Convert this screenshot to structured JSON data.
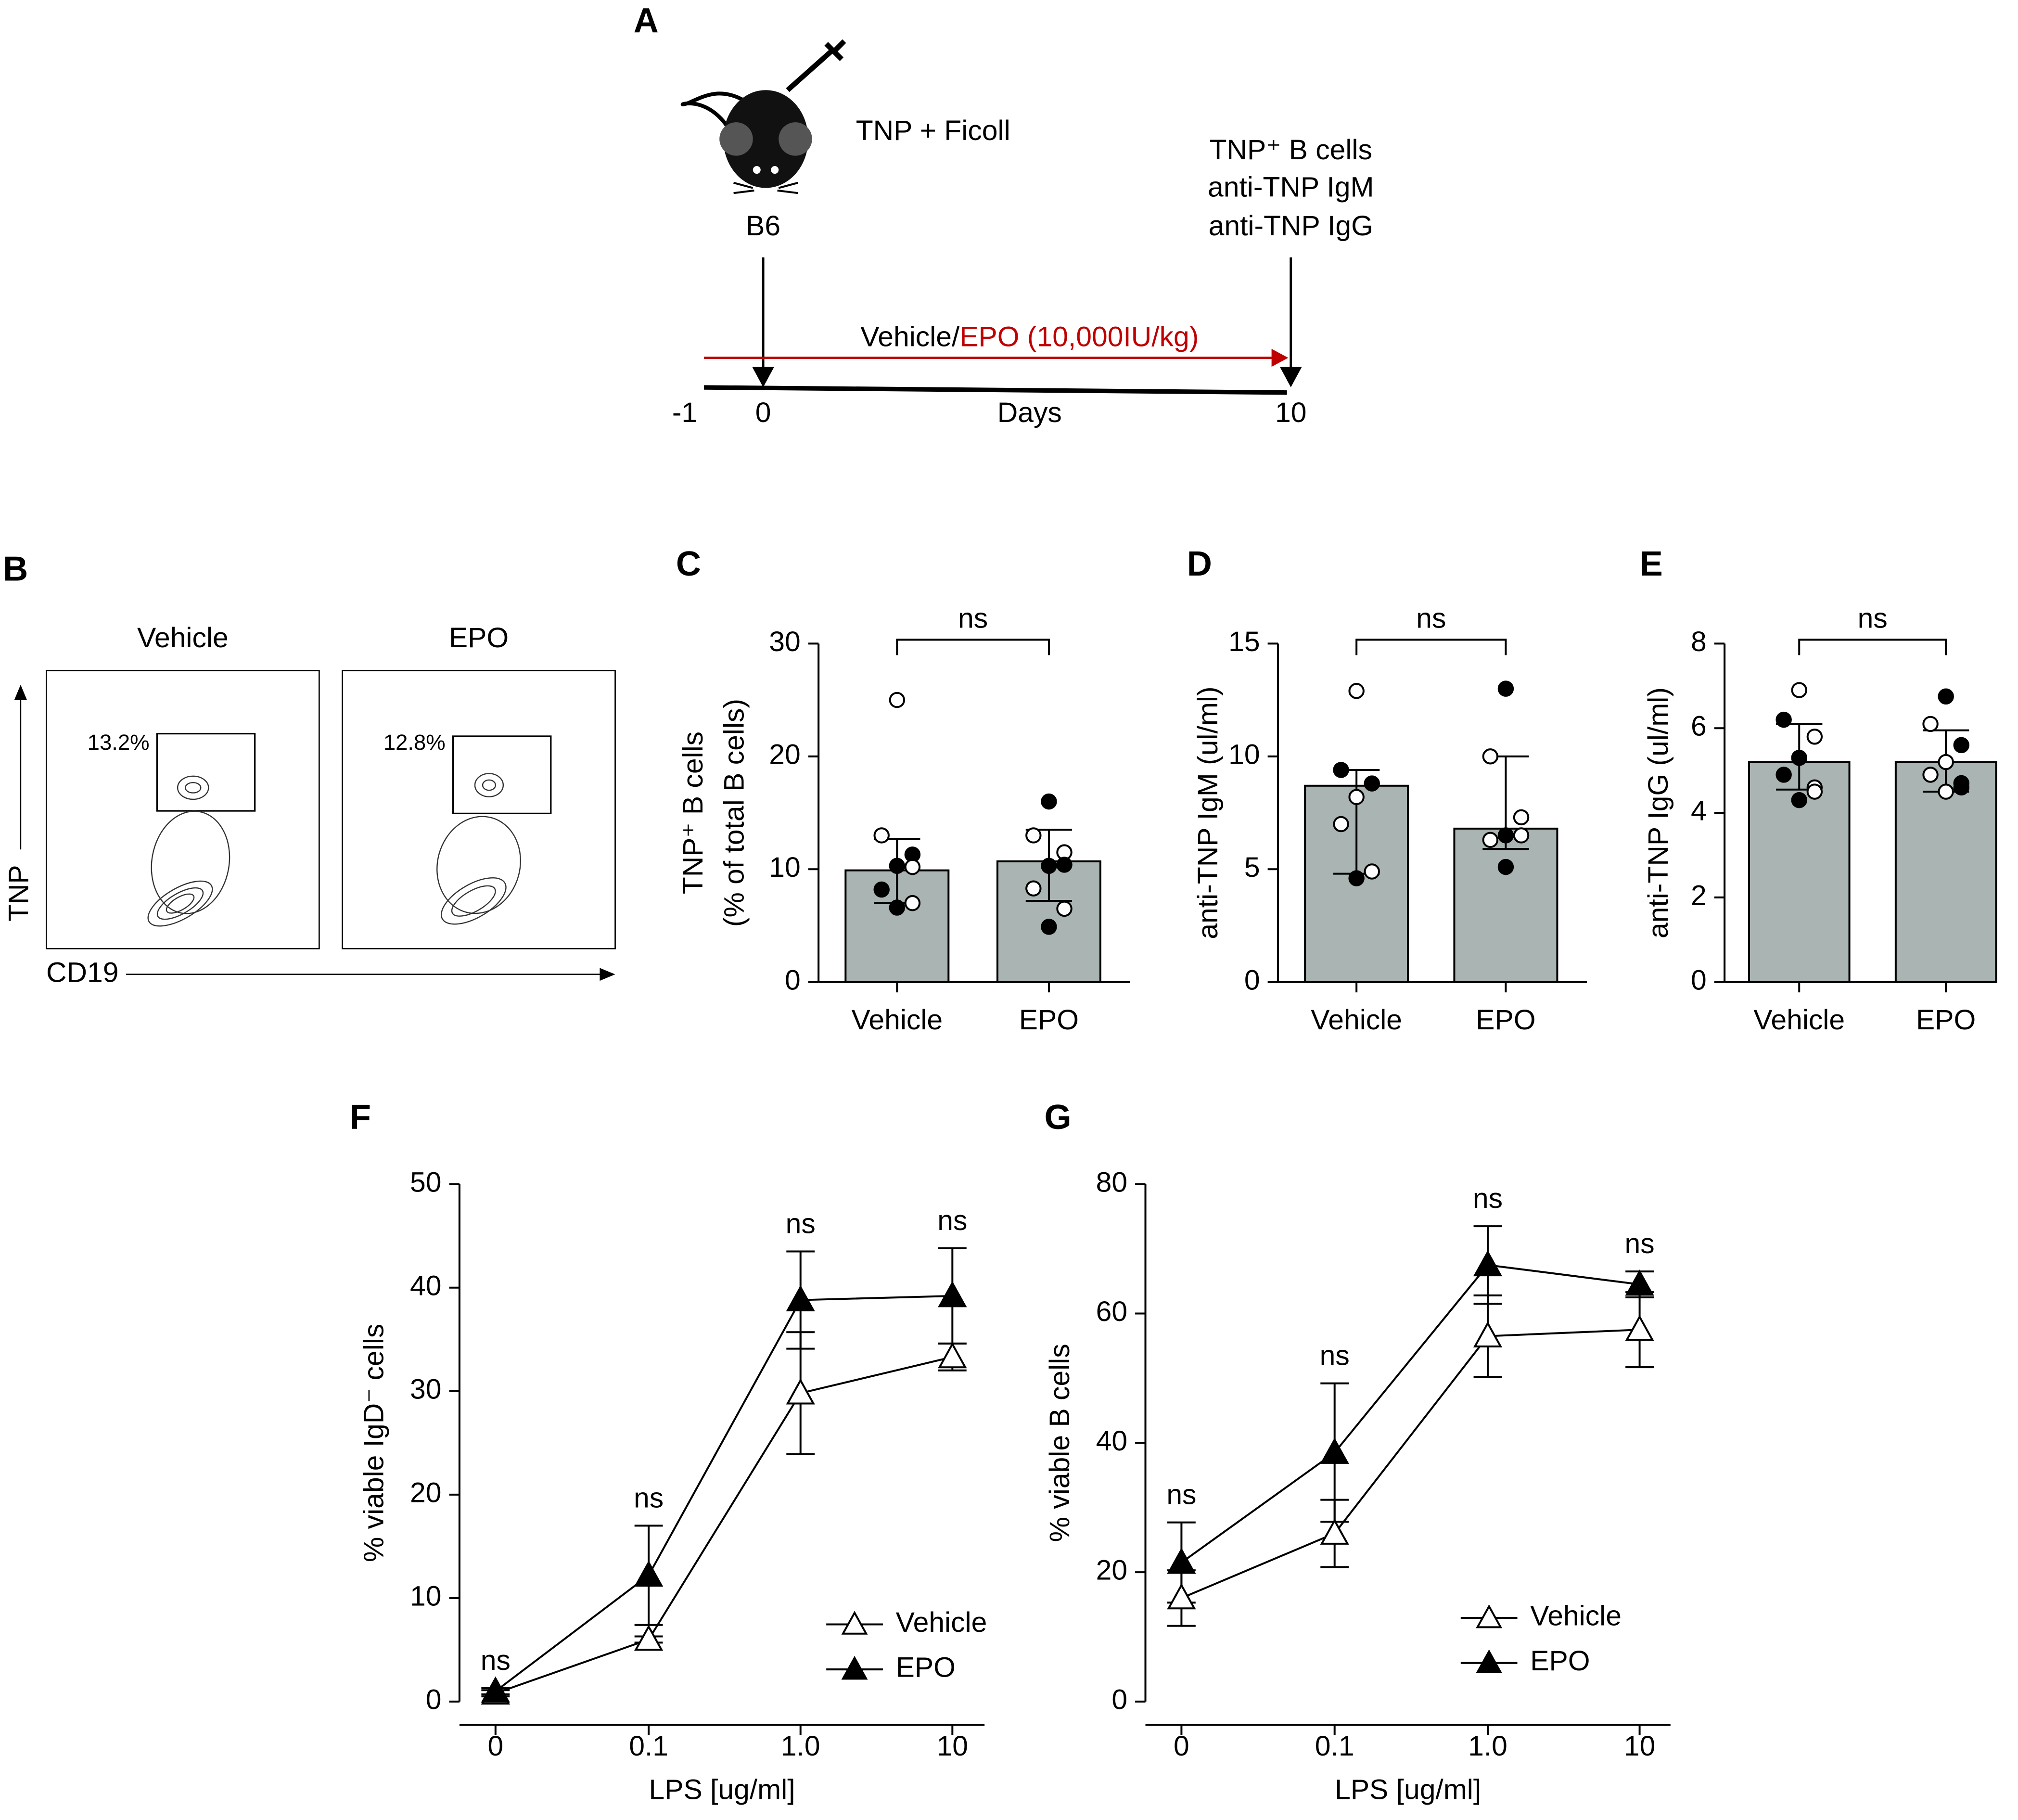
{
  "diagram": {
    "panel": "A",
    "treatment": "TNP + Ficoll",
    "strain": "B6",
    "readouts": [
      "TNP⁺ B cells",
      "anti-TNP IgM",
      "anti-TNP IgG"
    ],
    "arrow_text": [
      "Vehicle/",
      "EPO (10,000IU/kg)"
    ],
    "timeline": [
      "-1",
      "0",
      "Days",
      "10"
    ]
  },
  "flow": {
    "panel": "B",
    "plots": [
      {
        "title": "Vehicle",
        "gate": "13.2%"
      },
      {
        "title": "EPO",
        "gate": "12.8%"
      }
    ],
    "y_axis": "TNP",
    "x_axis": "CD19"
  },
  "chart_data": [
    {
      "type": "bar",
      "panel": "C",
      "ylabel": [
        "TNP⁺ B cells",
        "(% of total B cells)"
      ],
      "categories": [
        "Vehicle",
        "EPO"
      ],
      "values": [
        9.9,
        10.7
      ],
      "whisker_low": [
        7.0,
        7.2
      ],
      "whisker_high": [
        12.7,
        13.5
      ],
      "points": [
        [
          {
            "value": 25,
            "filled": false
          },
          {
            "value": 13,
            "filled": false
          },
          {
            "value": 11.3,
            "filled": true
          },
          {
            "value": 10.3,
            "filled": true
          },
          {
            "value": 8.2,
            "filled": true
          },
          {
            "value": 7.0,
            "filled": false
          },
          {
            "value": 6.6,
            "filled": true
          },
          {
            "value": 10.2,
            "filled": false
          }
        ],
        [
          {
            "value": 16,
            "filled": true
          },
          {
            "value": 13,
            "filled": false
          },
          {
            "value": 11.5,
            "filled": false
          },
          {
            "value": 10.3,
            "filled": true
          },
          {
            "value": 8.3,
            "filled": false
          },
          {
            "value": 6.5,
            "filled": false
          },
          {
            "value": 4.9,
            "filled": true
          },
          {
            "value": 10.4,
            "filled": true
          }
        ]
      ],
      "annotation": "ns",
      "bar_color": "#a9b4b3",
      "ylim": [
        0,
        30
      ],
      "yticks": [
        0,
        10,
        20,
        30
      ]
    },
    {
      "type": "bar",
      "panel": "D",
      "ylabel": [
        "anti-TNP IgM (ul/ml)"
      ],
      "categories": [
        "Vehicle",
        "EPO"
      ],
      "values": [
        8.7,
        6.8
      ],
      "whisker_low": [
        4.8,
        5.9
      ],
      "whisker_high": [
        9.4,
        10.0
      ],
      "points": [
        [
          {
            "value": 12.9,
            "filled": false
          },
          {
            "value": 9.4,
            "filled": true
          },
          {
            "value": 8.8,
            "filled": true
          },
          {
            "value": 8.2,
            "filled": false
          },
          {
            "value": 7.0,
            "filled": false
          },
          {
            "value": 4.9,
            "filled": false
          },
          {
            "value": 4.6,
            "filled": true
          }
        ],
        [
          {
            "value": 13,
            "filled": true
          },
          {
            "value": 10,
            "filled": false
          },
          {
            "value": 7.3,
            "filled": false
          },
          {
            "value": 6.5,
            "filled": true
          },
          {
            "value": 6.3,
            "filled": false
          },
          {
            "value": 6.5,
            "filled": false
          },
          {
            "value": 5.1,
            "filled": true
          }
        ]
      ],
      "annotation": "ns",
      "bar_color": "#a9b4b3",
      "ylim": [
        0,
        15
      ],
      "yticks": [
        0,
        5,
        10,
        15
      ]
    },
    {
      "type": "bar",
      "panel": "E",
      "ylabel": [
        "anti-TNP IgG (ul/ml)"
      ],
      "categories": [
        "Vehicle",
        "EPO"
      ],
      "values": [
        5.2,
        5.2
      ],
      "whisker_low": [
        4.55,
        4.5
      ],
      "whisker_high": [
        6.1,
        5.95
      ],
      "points": [
        [
          {
            "value": 6.9,
            "filled": false
          },
          {
            "value": 6.2,
            "filled": true
          },
          {
            "value": 5.8,
            "filled": false
          },
          {
            "value": 5.3,
            "filled": true
          },
          {
            "value": 4.9,
            "filled": true
          },
          {
            "value": 4.6,
            "filled": false
          },
          {
            "value": 4.3,
            "filled": true
          },
          {
            "value": 4.5,
            "filled": false
          }
        ],
        [
          {
            "value": 6.75,
            "filled": true
          },
          {
            "value": 6.1,
            "filled": false
          },
          {
            "value": 5.6,
            "filled": true
          },
          {
            "value": 5.2,
            "filled": false
          },
          {
            "value": 4.9,
            "filled": false
          },
          {
            "value": 4.6,
            "filled": true
          },
          {
            "value": 4.5,
            "filled": false
          },
          {
            "value": 4.7,
            "filled": true
          }
        ]
      ],
      "annotation": "ns",
      "bar_color": "#a9b4b3",
      "ylim": [
        0,
        8
      ],
      "yticks": [
        0,
        2,
        4,
        6,
        8
      ]
    },
    {
      "type": "line",
      "panel": "F",
      "ylabel": [
        "% viable IgD⁻ cells"
      ],
      "xlabel": "LPS [ug/ml]",
      "categories": [
        "0",
        "0.1",
        "1.0",
        "10"
      ],
      "series": [
        {
          "name": "Vehicle",
          "color": "#000000",
          "marker": "open-triangle",
          "values": [
            0.8,
            6.0,
            29.8,
            33.3
          ],
          "errors": [
            0.3,
            0.3,
            5.9,
            1.3
          ]
        },
        {
          "name": "EPO",
          "color": "#000000",
          "marker": "filled-triangle",
          "values": [
            1.0,
            12.2,
            38.8,
            39.2
          ],
          "errors": [
            0.3,
            4.8,
            4.7,
            4.6
          ]
        }
      ],
      "annotations": [
        "ns",
        "ns",
        "ns",
        "ns"
      ],
      "legend": "lower right",
      "ylim": [
        0,
        50
      ],
      "yticks": [
        0,
        10,
        20,
        30,
        40,
        50
      ]
    },
    {
      "type": "line",
      "panel": "G",
      "ylabel": [
        "% viable B cells"
      ],
      "xlabel": "LPS [ug/ml]",
      "categories": [
        "0",
        "0.1",
        "1.0",
        "10"
      ],
      "series": [
        {
          "name": "Vehicle",
          "color": "#000000",
          "marker": "open-triangle",
          "values": [
            16,
            26,
            56.5,
            57.5
          ],
          "errors": [
            4.3,
            5.2,
            6.3,
            5.8
          ]
        },
        {
          "name": "EPO",
          "color": "#000000",
          "marker": "filled-triangle",
          "values": [
            21.5,
            38.5,
            67.5,
            64.5
          ],
          "errors": [
            6.2,
            10.7,
            6.0,
            2.0
          ]
        }
      ],
      "annotations": [
        "ns",
        "ns",
        "ns",
        "ns"
      ],
      "legend": "lower right",
      "ylim": [
        0,
        80
      ],
      "yticks": [
        0,
        20,
        40,
        60,
        80
      ]
    }
  ]
}
